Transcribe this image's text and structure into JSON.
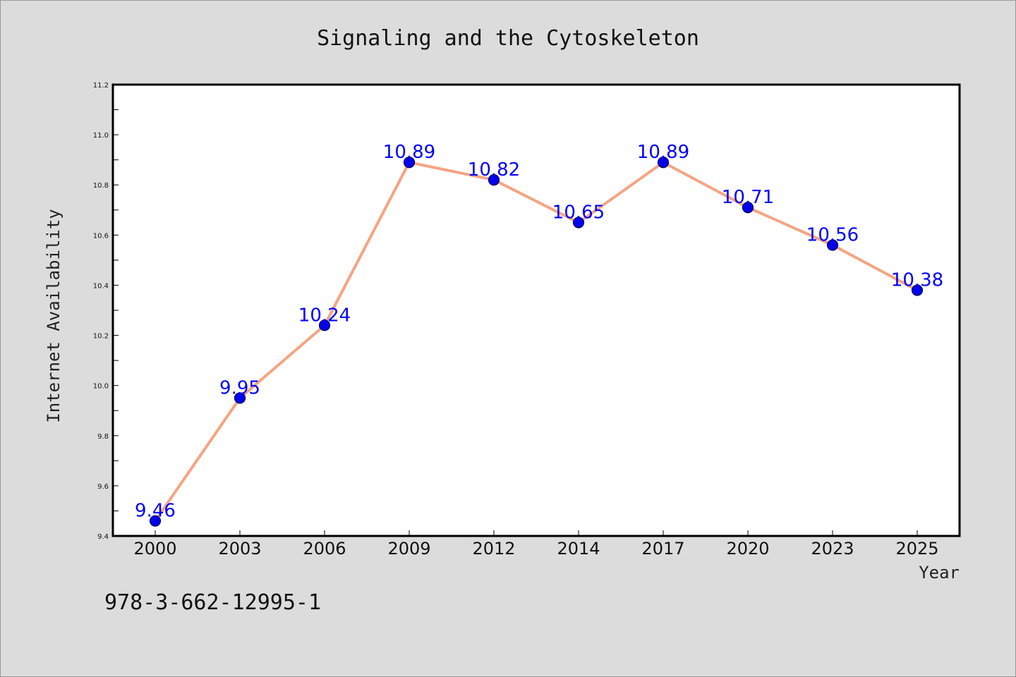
{
  "chart_data": {
    "type": "line",
    "title": "Signaling and the Cytoskeleton",
    "xlabel": "Year",
    "ylabel": "Internet Availability",
    "categories": [
      "2000",
      "2003",
      "2006",
      "2009",
      "2012",
      "2014",
      "2017",
      "2020",
      "2023",
      "2025"
    ],
    "series": [
      {
        "values": [
          9.46,
          9.95,
          10.24,
          10.89,
          10.82,
          10.65,
          10.89,
          10.71,
          10.56,
          10.38
        ]
      }
    ],
    "data_labels": [
      "9.46",
      "9.95",
      "10.24",
      "10.89",
      "10.82",
      "10.65",
      "10.89",
      "10.71",
      "10.56",
      "10.38"
    ],
    "ylim": [
      9.4,
      11.2
    ],
    "yticks": [
      "9.4",
      "9.6",
      "9.8",
      "10.0",
      "10.2",
      "10.4",
      "10.6",
      "10.8",
      "11.0",
      "11.2"
    ],
    "grid": false,
    "legend": "none",
    "colors": {
      "line": "#f4a582",
      "marker_fill": "#0000ee",
      "marker_edge": "#00004d",
      "data_label": "#0000ff",
      "background": "#dcdcdc",
      "plot_background": "#ffffff"
    }
  },
  "annotation": {
    "isbn": "978-3-662-12995-1"
  }
}
